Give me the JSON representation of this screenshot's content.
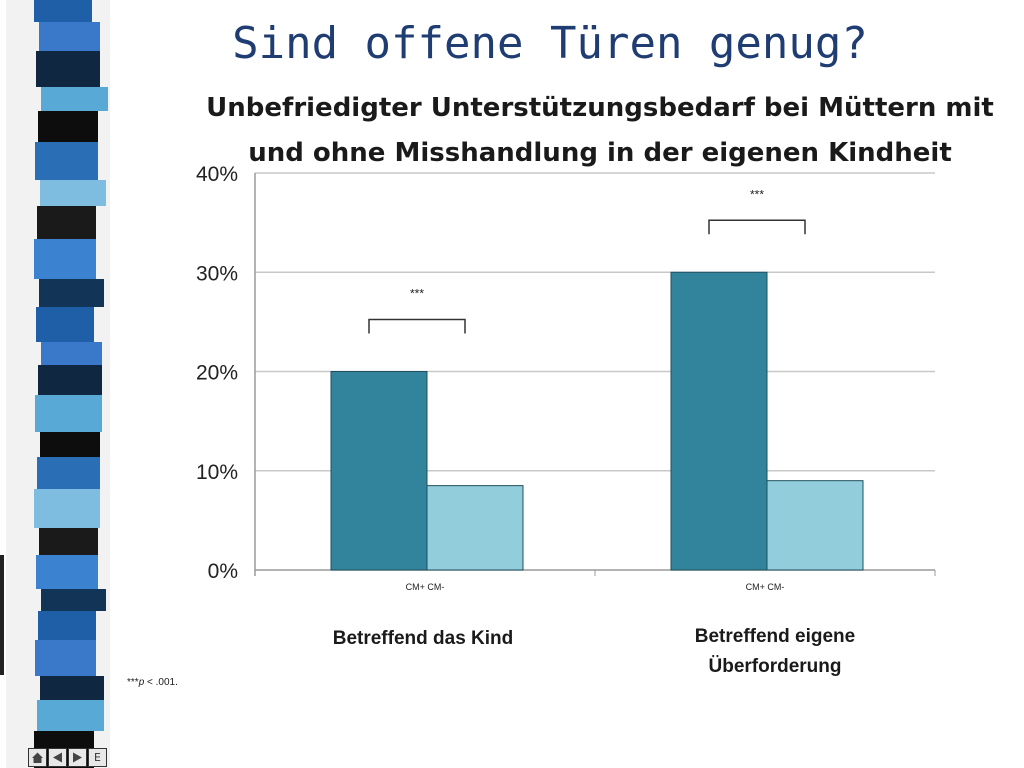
{
  "slide": {
    "title": "Sind offene Türen genug?"
  },
  "footnote": {
    "prefix": "***",
    "p_symbol": "p",
    "suffix": " < .001."
  },
  "nav": {
    "end_label": "E"
  },
  "colors": {
    "cm_plus": "#31849b",
    "cm_minus": "#92cddc",
    "title_blue": "#1f3d73",
    "grid": "#c8c8c8"
  },
  "chart_data": {
    "type": "bar",
    "title_lines": [
      "Unbefriedigter Unterstützungsbedarf bei Müttern mit",
      "und ohne Misshandlung in der eigenen Kindheit"
    ],
    "categories": [
      "Betreffend  das  Kind",
      "Betreffend  eigene Überforderung"
    ],
    "category_label_lines": [
      [
        "Betreffend  das  Kind"
      ],
      [
        "Betreffend  eigene",
        "Überforderung"
      ]
    ],
    "bar_labels": [
      "CM+  CM-",
      "CM+  CM-"
    ],
    "series": [
      {
        "name": "CM+",
        "values": [
          20,
          30
        ]
      },
      {
        "name": "CM-",
        "values": [
          8.5,
          9
        ]
      }
    ],
    "ylim": [
      0,
      40
    ],
    "yticks": [
      "0%",
      "10%",
      "20%",
      "30%",
      "40%"
    ],
    "significance": [
      "***",
      "***"
    ],
    "grid": true
  }
}
